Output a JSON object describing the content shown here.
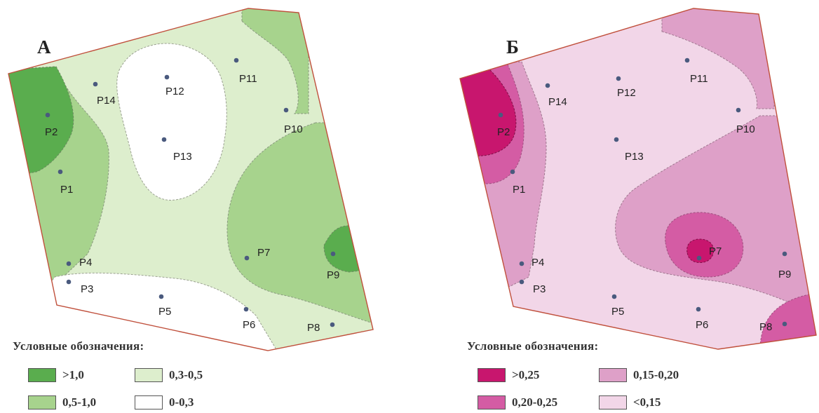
{
  "maps": [
    {
      "letter": "А",
      "points": [
        {
          "id": "P1",
          "label": "P1"
        },
        {
          "id": "P2",
          "label": "P2"
        },
        {
          "id": "P3",
          "label": "P3"
        },
        {
          "id": "P4",
          "label": "P4"
        },
        {
          "id": "P5",
          "label": "P5"
        },
        {
          "id": "P6",
          "label": "P6"
        },
        {
          "id": "P7",
          "label": "P7"
        },
        {
          "id": "P8",
          "label": "P8"
        },
        {
          "id": "P9",
          "label": "P9"
        },
        {
          "id": "P10",
          "label": "P10"
        },
        {
          "id": "P11",
          "label": "P11"
        },
        {
          "id": "P12",
          "label": "P12"
        },
        {
          "id": "P13",
          "label": "P13"
        },
        {
          "id": "P14",
          "label": "P14"
        }
      ],
      "legend": {
        "title": "Условные обозначения:",
        "items": [
          {
            "label": ">1,0",
            "color": "#5aad4e"
          },
          {
            "label": "0,3-0,5",
            "color": "#ddeecd"
          },
          {
            "label": "0,5-1,0",
            "color": "#a7d38d"
          },
          {
            "label": "0-0,3",
            "color": "#ffffff"
          }
        ]
      }
    },
    {
      "letter": "Б",
      "points": [
        {
          "id": "P1",
          "label": "P1"
        },
        {
          "id": "P2",
          "label": "P2"
        },
        {
          "id": "P3",
          "label": "P3"
        },
        {
          "id": "P4",
          "label": "P4"
        },
        {
          "id": "P5",
          "label": "P5"
        },
        {
          "id": "P6",
          "label": "P6"
        },
        {
          "id": "P7",
          "label": "P7"
        },
        {
          "id": "P8",
          "label": "P8"
        },
        {
          "id": "P9",
          "label": "P9"
        },
        {
          "id": "P10",
          "label": "P10"
        },
        {
          "id": "P11",
          "label": "P11"
        },
        {
          "id": "P12",
          "label": "P12"
        },
        {
          "id": "P13",
          "label": "P13"
        },
        {
          "id": "P14",
          "label": "P14"
        }
      ],
      "legend": {
        "title": "Условные обозначения:",
        "items": [
          {
            "label": ">0,25",
            "color": "#c8166e"
          },
          {
            "label": "0,15-0,20",
            "color": "#dea0c8"
          },
          {
            "label": "0,20-0,25",
            "color": "#d45ca4"
          },
          {
            "label": "<0,15",
            "color": "#f2d6e8"
          }
        ]
      }
    }
  ]
}
